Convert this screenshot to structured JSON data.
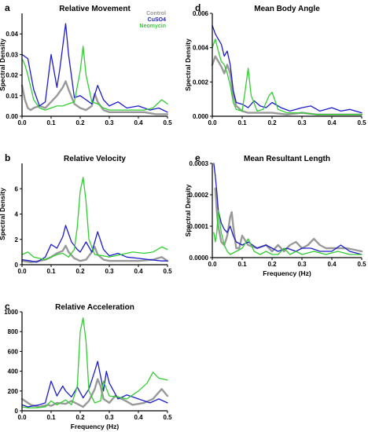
{
  "colors": {
    "control": "#999999",
    "cuso4": "#1c1ccc",
    "neomycin": "#33cc33",
    "axis": "#000000"
  },
  "chart_data": [
    {
      "id": "a",
      "type": "line",
      "panel_letter": "a",
      "title": "Relative Movement",
      "ylabel": "Spectral Density",
      "xlabel": "",
      "xlim": [
        0,
        0.5
      ],
      "ylim": [
        0,
        0.05
      ],
      "xticks": [
        "0.0",
        "0.1",
        "0.2",
        "0.3",
        "0.4",
        "0.5"
      ],
      "xtick_values": [
        0,
        0.1,
        0.2,
        0.3,
        0.4,
        0.5
      ],
      "yticks": [
        "0.00",
        "0.01",
        "0.02",
        "0.03",
        "0.04"
      ],
      "ytick_values": [
        0,
        0.01,
        0.02,
        0.03,
        0.04
      ],
      "legend": [
        "Control",
        "CuSO4",
        "Neomycin"
      ],
      "series": [
        {
          "name": "Control",
          "color_key": "control",
          "x": [
            0,
            0.01,
            0.02,
            0.03,
            0.04,
            0.06,
            0.08,
            0.1,
            0.12,
            0.14,
            0.15,
            0.16,
            0.18,
            0.2,
            0.22,
            0.24,
            0.25,
            0.26,
            0.28,
            0.3,
            0.34,
            0.38,
            0.42,
            0.46,
            0.5
          ],
          "y": [
            0.015,
            0.008,
            0.004,
            0.003,
            0.004,
            0.005,
            0.004,
            0.007,
            0.01,
            0.014,
            0.017,
            0.013,
            0.006,
            0.004,
            0.003,
            0.005,
            0.011,
            0.007,
            0.003,
            0.002,
            0.002,
            0.002,
            0.002,
            0.001,
            0.001
          ]
        },
        {
          "name": "CuSO4",
          "color_key": "cuso4",
          "x": [
            0,
            0.01,
            0.02,
            0.04,
            0.06,
            0.08,
            0.1,
            0.12,
            0.13,
            0.15,
            0.16,
            0.18,
            0.2,
            0.22,
            0.24,
            0.26,
            0.28,
            0.3,
            0.33,
            0.36,
            0.4,
            0.44,
            0.47,
            0.5
          ],
          "y": [
            0.03,
            0.029,
            0.028,
            0.013,
            0.005,
            0.007,
            0.03,
            0.014,
            0.023,
            0.045,
            0.03,
            0.009,
            0.01,
            0.008,
            0.006,
            0.015,
            0.008,
            0.005,
            0.007,
            0.004,
            0.005,
            0.003,
            0.004,
            0.002
          ]
        },
        {
          "name": "Neomycin",
          "color_key": "neomycin",
          "x": [
            0,
            0.01,
            0.02,
            0.04,
            0.06,
            0.08,
            0.1,
            0.12,
            0.14,
            0.16,
            0.18,
            0.2,
            0.21,
            0.22,
            0.24,
            0.26,
            0.28,
            0.3,
            0.34,
            0.38,
            0.42,
            0.45,
            0.48,
            0.5
          ],
          "y": [
            0.028,
            0.025,
            0.02,
            0.008,
            0.004,
            0.003,
            0.004,
            0.005,
            0.005,
            0.006,
            0.007,
            0.022,
            0.034,
            0.02,
            0.007,
            0.006,
            0.004,
            0.003,
            0.003,
            0.003,
            0.003,
            0.004,
            0.008,
            0.006
          ]
        }
      ]
    },
    {
      "id": "b",
      "type": "line",
      "panel_letter": "b",
      "title": "Relative Velocity",
      "ylabel": "Spectral Density",
      "xlabel": "",
      "xlim": [
        0,
        0.5
      ],
      "ylim": [
        0,
        8
      ],
      "xticks": [
        "0.0",
        "0.1",
        "0.2",
        "0.3",
        "0.4",
        "0.5"
      ],
      "xtick_values": [
        0,
        0.1,
        0.2,
        0.3,
        0.4,
        0.5
      ],
      "yticks": [
        "0",
        "2",
        "4",
        "6"
      ],
      "ytick_values": [
        0,
        2,
        4,
        6
      ],
      "series": [
        {
          "name": "Control",
          "color_key": "control",
          "x": [
            0,
            0.03,
            0.06,
            0.08,
            0.1,
            0.12,
            0.14,
            0.15,
            0.16,
            0.18,
            0.2,
            0.22,
            0.24,
            0.25,
            0.26,
            0.28,
            0.3,
            0.35,
            0.4,
            0.45,
            0.48,
            0.5
          ],
          "y": [
            0.3,
            0.2,
            0.3,
            0.4,
            0.6,
            0.9,
            1.1,
            1.5,
            1.0,
            0.5,
            0.3,
            0.4,
            1.0,
            1.4,
            0.8,
            0.4,
            0.3,
            0.3,
            0.3,
            0.4,
            0.6,
            0.3
          ]
        },
        {
          "name": "CuSO4",
          "color_key": "cuso4",
          "x": [
            0,
            0.03,
            0.05,
            0.08,
            0.1,
            0.12,
            0.14,
            0.15,
            0.17,
            0.19,
            0.2,
            0.22,
            0.24,
            0.26,
            0.28,
            0.3,
            0.33,
            0.36,
            0.4,
            0.44,
            0.48,
            0.5
          ],
          "y": [
            0.4,
            0.3,
            0.2,
            0.6,
            1.6,
            1.3,
            2.2,
            3.1,
            1.8,
            1.2,
            1.0,
            1.8,
            1.0,
            2.6,
            1.2,
            0.7,
            0.9,
            0.6,
            0.5,
            0.4,
            0.3,
            0.3
          ]
        },
        {
          "name": "Neomycin",
          "color_key": "neomycin",
          "x": [
            0,
            0.02,
            0.04,
            0.06,
            0.08,
            0.1,
            0.12,
            0.14,
            0.16,
            0.18,
            0.19,
            0.2,
            0.21,
            0.22,
            0.23,
            0.25,
            0.28,
            0.3,
            0.34,
            0.38,
            0.42,
            0.45,
            0.48,
            0.5
          ],
          "y": [
            0.8,
            1.0,
            0.6,
            0.5,
            0.4,
            0.6,
            0.8,
            0.9,
            0.6,
            1.2,
            3.0,
            5.8,
            6.9,
            5.0,
            2.0,
            0.8,
            0.7,
            0.6,
            0.8,
            1.0,
            0.9,
            1.0,
            1.4,
            1.2
          ]
        }
      ]
    },
    {
      "id": "c",
      "type": "line",
      "panel_letter": "c",
      "title": "Relative Acceleration",
      "ylabel": "Spectral Density",
      "xlabel": "Frequency (Hz)",
      "xlim": [
        0,
        0.5
      ],
      "ylim": [
        0,
        1000
      ],
      "xticks": [
        "0.0",
        "0.1",
        "0.2",
        "0.3",
        "0.4",
        "0.5"
      ],
      "xtick_values": [
        0,
        0.1,
        0.2,
        0.3,
        0.4,
        0.5
      ],
      "yticks": [
        "0",
        "200",
        "400",
        "600",
        "800",
        "1000"
      ],
      "ytick_values": [
        0,
        200,
        400,
        600,
        800,
        1000
      ],
      "series": [
        {
          "name": "Control",
          "color_key": "control",
          "x": [
            0,
            0.03,
            0.06,
            0.09,
            0.1,
            0.12,
            0.15,
            0.17,
            0.19,
            0.21,
            0.23,
            0.25,
            0.26,
            0.27,
            0.28,
            0.3,
            0.32,
            0.35,
            0.38,
            0.42,
            0.45,
            0.48,
            0.5
          ],
          "y": [
            120,
            60,
            40,
            60,
            50,
            80,
            70,
            100,
            70,
            40,
            100,
            220,
            320,
            250,
            120,
            80,
            150,
            110,
            60,
            80,
            120,
            220,
            150
          ]
        },
        {
          "name": "CuSO4",
          "color_key": "cuso4",
          "x": [
            0,
            0.02,
            0.04,
            0.06,
            0.08,
            0.1,
            0.12,
            0.14,
            0.15,
            0.17,
            0.19,
            0.21,
            0.23,
            0.25,
            0.26,
            0.28,
            0.29,
            0.3,
            0.33,
            0.36,
            0.4,
            0.44,
            0.47,
            0.5
          ],
          "y": [
            60,
            40,
            50,
            60,
            80,
            300,
            150,
            250,
            200,
            140,
            240,
            130,
            220,
            400,
            500,
            200,
            400,
            280,
            120,
            160,
            120,
            80,
            120,
            80
          ]
        },
        {
          "name": "Neomycin",
          "color_key": "neomycin",
          "x": [
            0,
            0.02,
            0.05,
            0.08,
            0.1,
            0.12,
            0.15,
            0.17,
            0.19,
            0.2,
            0.21,
            0.22,
            0.23,
            0.25,
            0.27,
            0.28,
            0.3,
            0.33,
            0.36,
            0.4,
            0.43,
            0.45,
            0.47,
            0.5
          ],
          "y": [
            40,
            30,
            30,
            40,
            100,
            60,
            110,
            60,
            250,
            800,
            940,
            700,
            200,
            80,
            100,
            300,
            150,
            140,
            120,
            200,
            280,
            390,
            330,
            310
          ]
        }
      ]
    },
    {
      "id": "d",
      "type": "line",
      "panel_letter": "d",
      "title": "Mean Body Angle",
      "ylabel": "Spectral Density",
      "xlabel": "",
      "xlim": [
        0,
        0.5
      ],
      "ylim": [
        0,
        0.006
      ],
      "xticks": [
        "0.0",
        "0.1",
        "0.2",
        "0.3",
        "0.4",
        "0.5"
      ],
      "xtick_values": [
        0,
        0.1,
        0.2,
        0.3,
        0.4,
        0.5
      ],
      "yticks": [
        "0.000",
        "0.002",
        "0.004",
        "0.006"
      ],
      "ytick_values": [
        0,
        0.002,
        0.004,
        0.006
      ],
      "series": [
        {
          "name": "Control",
          "color_key": "control",
          "x": [
            0,
            0.01,
            0.02,
            0.03,
            0.04,
            0.05,
            0.06,
            0.07,
            0.08,
            0.1,
            0.12,
            0.14,
            0.16,
            0.2,
            0.25,
            0.3,
            0.35,
            0.4,
            0.45,
            0.5
          ],
          "y": [
            0.003,
            0.0035,
            0.0032,
            0.0029,
            0.0025,
            0.003,
            0.0025,
            0.0012,
            0.0006,
            0.0003,
            0.0002,
            0.0002,
            0.0002,
            0.0002,
            0.0001,
            0.0002,
            0.0001,
            0.0001,
            0.0001,
            0.0001
          ]
        },
        {
          "name": "CuSO4",
          "color_key": "cuso4",
          "x": [
            0,
            0.01,
            0.02,
            0.03,
            0.04,
            0.05,
            0.06,
            0.07,
            0.08,
            0.1,
            0.12,
            0.14,
            0.16,
            0.18,
            0.2,
            0.23,
            0.26,
            0.3,
            0.33,
            0.36,
            0.4,
            0.43,
            0.46,
            0.5
          ],
          "y": [
            0.0053,
            0.0048,
            0.0045,
            0.0042,
            0.0035,
            0.0038,
            0.003,
            0.0015,
            0.0008,
            0.0007,
            0.0005,
            0.0009,
            0.0006,
            0.0005,
            0.0008,
            0.0005,
            0.0003,
            0.0005,
            0.0006,
            0.0003,
            0.0005,
            0.0003,
            0.0004,
            0.0002
          ]
        },
        {
          "name": "Neomycin",
          "color_key": "neomycin",
          "x": [
            0,
            0.01,
            0.02,
            0.03,
            0.04,
            0.05,
            0.06,
            0.07,
            0.08,
            0.1,
            0.11,
            0.12,
            0.13,
            0.15,
            0.17,
            0.19,
            0.2,
            0.22,
            0.25,
            0.3,
            0.35,
            0.4,
            0.45,
            0.5
          ],
          "y": [
            0.004,
            0.0045,
            0.0038,
            0.0032,
            0.003,
            0.0025,
            0.0018,
            0.0008,
            0.0004,
            0.0003,
            0.0015,
            0.0028,
            0.0012,
            0.0003,
            0.0004,
            0.0012,
            0.0014,
            0.0004,
            0.0002,
            0.0002,
            0.0001,
            0.0001,
            0.0001,
            0.0001
          ]
        }
      ]
    },
    {
      "id": "e",
      "type": "line",
      "panel_letter": "e",
      "title": "Mean Resultant Length",
      "ylabel": "Spectral Density",
      "xlabel": "Frequency (Hz)",
      "xlim": [
        0,
        0.5
      ],
      "ylim": [
        0,
        0.0003
      ],
      "xticks": [
        "0.0",
        "0.1",
        "0.2",
        "0.3",
        "0.4",
        "0.5"
      ],
      "xtick_values": [
        0,
        0.1,
        0.2,
        0.3,
        0.4,
        0.5
      ],
      "yticks": [
        "0.0000",
        "0.0001",
        "0.0002",
        "0.0003"
      ],
      "ytick_values": [
        0,
        0.0001,
        0.0002,
        0.0003
      ],
      "series": [
        {
          "name": "Control",
          "color_key": "control",
          "x": [
            0.01,
            0.015,
            0.02,
            0.03,
            0.04,
            0.05,
            0.06,
            0.065,
            0.07,
            0.08,
            0.09,
            0.1,
            0.12,
            0.15,
            0.18,
            0.2,
            0.22,
            0.24,
            0.26,
            0.28,
            0.3,
            0.32,
            0.34,
            0.36,
            0.38,
            0.42,
            0.45,
            0.5
          ],
          "y": [
            0.00022,
            0.00015,
            0.0001,
            5e-05,
            4e-05,
            7e-05,
            0.00013,
            0.000145,
            0.0001,
            3e-05,
            3e-05,
            7e-05,
            4e-05,
            3e-05,
            4e-05,
            2e-05,
            4e-05,
            2e-05,
            4e-05,
            5e-05,
            3e-05,
            4e-05,
            6e-05,
            4e-05,
            3e-05,
            3e-05,
            3e-05,
            2e-05
          ]
        },
        {
          "name": "CuSO4",
          "color_key": "cuso4",
          "x": [
            0.005,
            0.01,
            0.015,
            0.02,
            0.03,
            0.04,
            0.05,
            0.06,
            0.07,
            0.08,
            0.1,
            0.12,
            0.15,
            0.18,
            0.2,
            0.22,
            0.25,
            0.28,
            0.3,
            0.33,
            0.36,
            0.4,
            0.43,
            0.46,
            0.5
          ],
          "y": [
            0.0003,
            0.00026,
            0.00021,
            0.00015,
            0.00011,
            9e-05,
            8e-05,
            0.0001,
            7e-05,
            5e-05,
            4e-05,
            5e-05,
            3e-05,
            4e-05,
            3e-05,
            2e-05,
            3e-05,
            2e-05,
            3e-05,
            3e-05,
            2e-05,
            2e-05,
            4e-05,
            2e-05,
            1e-05
          ]
        },
        {
          "name": "Neomycin",
          "color_key": "neomycin",
          "x": [
            0.005,
            0.01,
            0.015,
            0.02,
            0.03,
            0.04,
            0.05,
            0.06,
            0.08,
            0.1,
            0.12,
            0.14,
            0.16,
            0.18,
            0.2,
            0.22,
            0.24,
            0.26,
            0.28,
            0.3,
            0.34,
            0.38,
            0.42,
            0.46,
            0.5
          ],
          "y": [
            8e-05,
            5e-05,
            8e-05,
            0.00015,
            8e-05,
            4e-05,
            2e-05,
            1e-05,
            2e-05,
            3e-05,
            6e-05,
            2e-05,
            1e-05,
            2e-05,
            1e-05,
            1e-05,
            3e-05,
            1e-05,
            2e-05,
            1e-05,
            2e-05,
            1e-05,
            2e-05,
            1e-05,
            1e-05
          ]
        }
      ]
    }
  ]
}
